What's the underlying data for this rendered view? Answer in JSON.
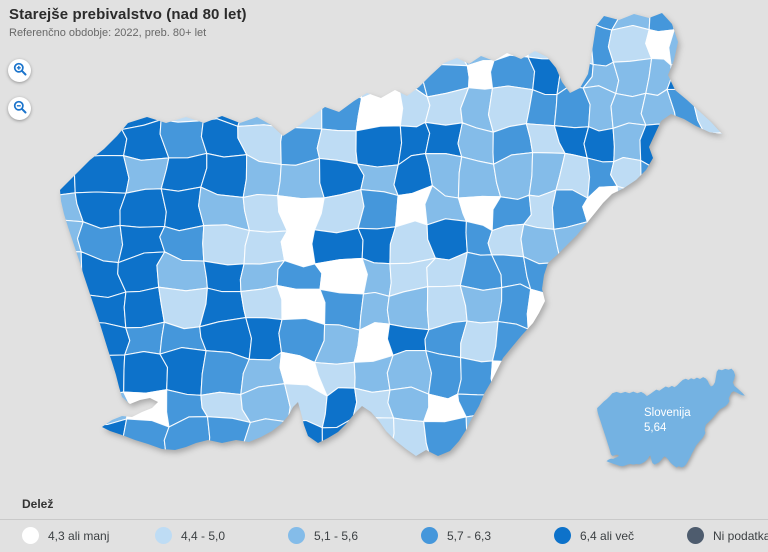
{
  "header": {
    "title": "Starejše prebivalstvo (nad 80 let)",
    "subtitle": "Referenčno obdobje: 2022, preb. 80+ let"
  },
  "controls": {
    "zoom_in_icon": "magnifier-plus",
    "zoom_out_icon": "magnifier-minus",
    "icon_color": "#1b74cc"
  },
  "map": {
    "palette": [
      "#ffffff",
      "#bedcf4",
      "#84bce9",
      "#4597db",
      "#0d72ca"
    ],
    "no_data_color": "#4e5c6e",
    "border_color": "#ffffff",
    "background": "#e1e1e1"
  },
  "inset": {
    "label": "Slovenija",
    "value": "5,64",
    "color": "#74b2e2"
  },
  "legend": {
    "title": "Delež",
    "items": [
      {
        "label": "4,3 ali manj",
        "color": "#ffffff"
      },
      {
        "label": "4,4 - 5,0",
        "color": "#bedcf4"
      },
      {
        "label": "5,1 - 5,6",
        "color": "#84bce9"
      },
      {
        "label": "5,7 - 6,3",
        "color": "#4597db"
      },
      {
        "label": "6,4 ali več",
        "color": "#0d72ca"
      },
      {
        "label": "Ni podatka",
        "color": "#4e5c6e"
      }
    ]
  }
}
